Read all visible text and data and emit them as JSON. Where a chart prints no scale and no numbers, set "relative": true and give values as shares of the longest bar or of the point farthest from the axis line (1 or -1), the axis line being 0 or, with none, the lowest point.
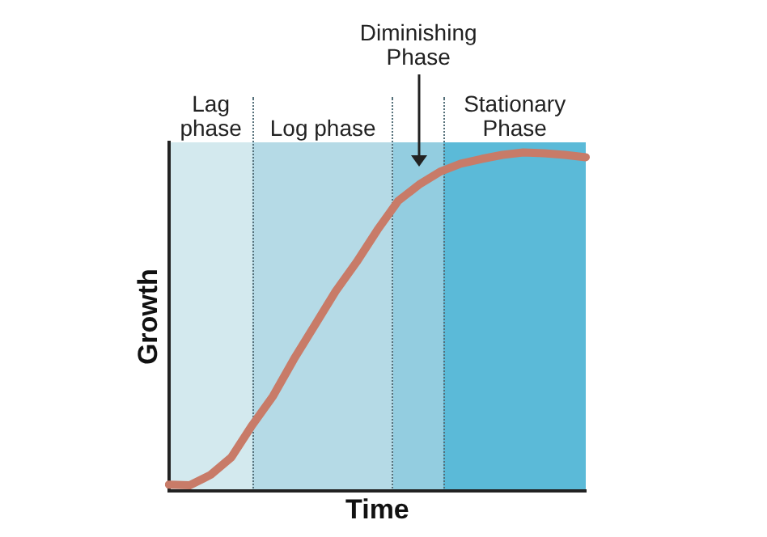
{
  "chart_data": {
    "type": "line",
    "relative": true,
    "xlabel": "Time",
    "ylabel": "Growth",
    "grid": false,
    "legend": false,
    "marker": "none",
    "categories": [
      null,
      null,
      null,
      null,
      null,
      null,
      null,
      null,
      null,
      null,
      null,
      null,
      null,
      null,
      null,
      null,
      null,
      null,
      null,
      null,
      null
    ],
    "series": [
      {
        "color": "#c87b68",
        "values": [
          0.019,
          0.017,
          0.048,
          0.1,
          0.195,
          0.281,
          0.39,
          0.49,
          0.59,
          0.676,
          0.771,
          0.857,
          0.905,
          0.943,
          0.967,
          0.981,
          0.993,
          1,
          0.998,
          0.993,
          0.986
        ]
      }
    ],
    "annotations": [
      "Lag phase",
      "Log phase",
      "Diminishing Phase",
      "Stationary Phase"
    ]
  }
}
